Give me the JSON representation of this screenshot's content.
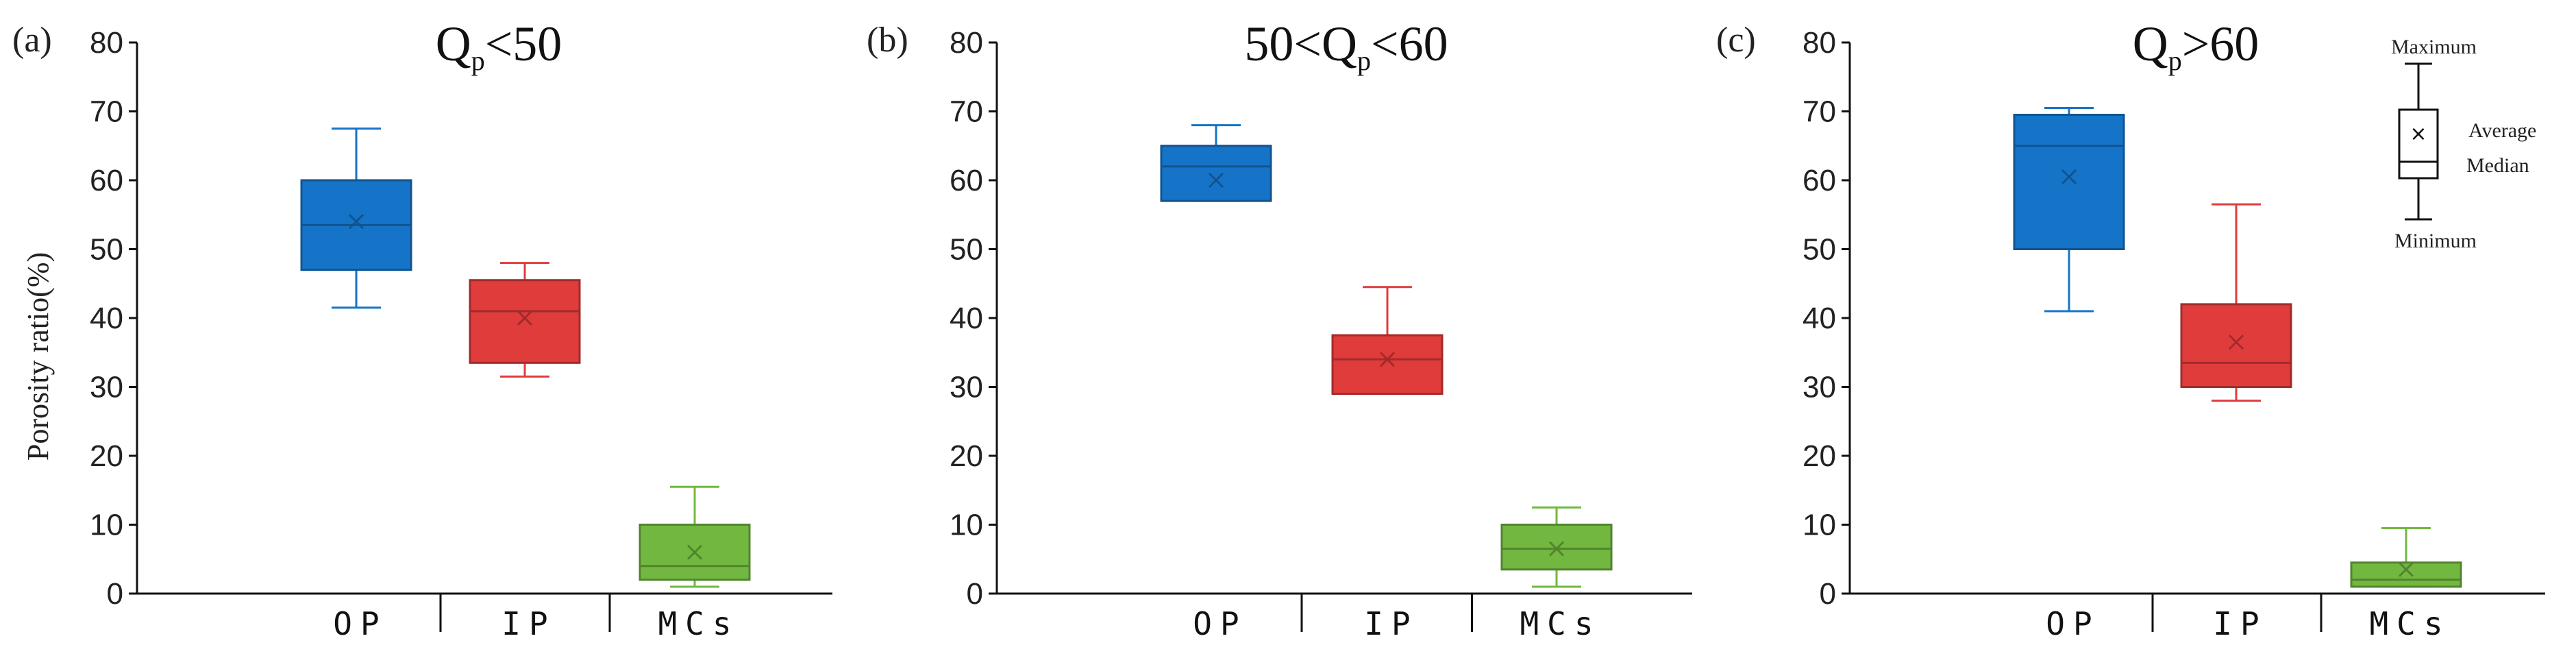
{
  "colors": {
    "OP": "#1674c8",
    "IP": "#e03c3c",
    "MCs": "#72b840"
  },
  "legend": {
    "maximum": "Maximum",
    "average": "Average",
    "median": "Median",
    "minimum": "Minimum"
  },
  "chart_data": [
    {
      "type": "box",
      "panel_label": "(a)",
      "title_parts": [
        "Q",
        "p",
        "<50"
      ],
      "ylabel": "Porosity ratio(%)",
      "ylim": [
        0,
        80
      ],
      "yticks": [
        0,
        10,
        20,
        30,
        40,
        50,
        60,
        70,
        80
      ],
      "categories": [
        "OP",
        "IP",
        "MCs"
      ],
      "boxes": [
        {
          "name": "OP",
          "min": 41.5,
          "q1": 47,
          "median": 53.5,
          "mean": 54,
          "q3": 60,
          "max": 67.5
        },
        {
          "name": "IP",
          "min": 31.5,
          "q1": 33.5,
          "median": 41,
          "mean": 40,
          "q3": 45.5,
          "max": 48
        },
        {
          "name": "MCs",
          "min": 1,
          "q1": 2,
          "median": 4,
          "mean": 6,
          "q3": 10,
          "max": 15.5
        }
      ]
    },
    {
      "type": "box",
      "panel_label": "(b)",
      "title_parts": [
        "50<Q",
        "p",
        "<60"
      ],
      "ylabel": "",
      "ylim": [
        0,
        80
      ],
      "yticks": [
        0,
        10,
        20,
        30,
        40,
        50,
        60,
        70,
        80
      ],
      "categories": [
        "OP",
        "IP",
        "MCs"
      ],
      "boxes": [
        {
          "name": "OP",
          "min": 57,
          "q1": 57,
          "median": 62,
          "mean": 60,
          "q3": 65,
          "max": 68
        },
        {
          "name": "IP",
          "min": 29,
          "q1": 29,
          "median": 34,
          "mean": 34,
          "q3": 37.5,
          "max": 44.5
        },
        {
          "name": "MCs",
          "min": 1,
          "q1": 3.5,
          "median": 6.5,
          "mean": 6.5,
          "q3": 10,
          "max": 12.5
        }
      ]
    },
    {
      "type": "box",
      "panel_label": "(c)",
      "title_parts": [
        "Q",
        "p",
        ">60"
      ],
      "ylabel": "",
      "ylim": [
        0,
        80
      ],
      "yticks": [
        0,
        10,
        20,
        30,
        40,
        50,
        60,
        70,
        80
      ],
      "categories": [
        "OP",
        "IP",
        "MCs"
      ],
      "boxes": [
        {
          "name": "OP",
          "min": 41,
          "q1": 50,
          "median": 65,
          "mean": 60.5,
          "q3": 69.5,
          "max": 70.5
        },
        {
          "name": "IP",
          "min": 28,
          "q1": 30,
          "median": 33.5,
          "mean": 36.5,
          "q3": 42,
          "max": 56.5
        },
        {
          "name": "MCs",
          "min": 1,
          "q1": 1,
          "median": 2,
          "mean": 3.5,
          "q3": 4.5,
          "max": 9.5
        }
      ]
    }
  ]
}
